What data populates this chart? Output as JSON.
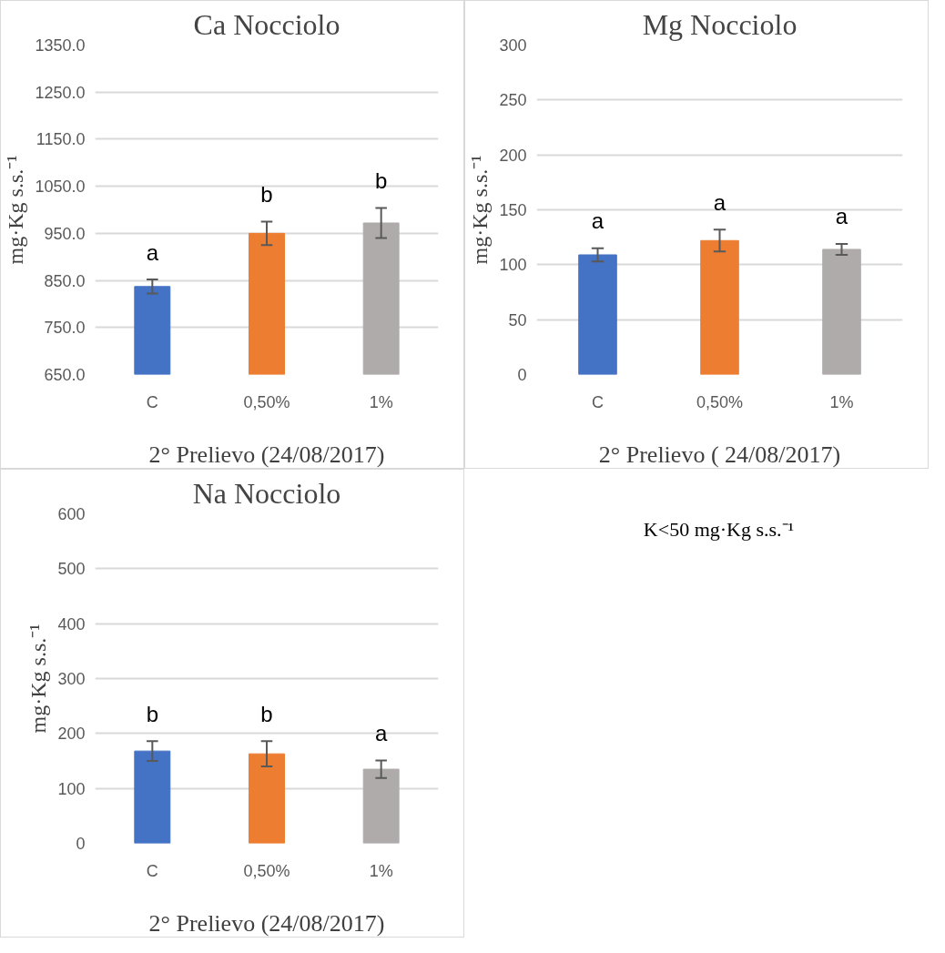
{
  "chart_data": [
    {
      "type": "bar",
      "title": "Ca Nocciolo",
      "xlabel": "2° Prelievo (24/08/2017)",
      "ylabel": "mg·Kg s.s.⁻¹",
      "categories": [
        "C",
        "0,50%",
        "1%"
      ],
      "values": [
        837,
        950,
        972
      ],
      "errors": [
        15,
        25,
        32
      ],
      "colors": [
        "#4472c4",
        "#ed7d31",
        "#afabab"
      ],
      "ylim": [
        650,
        1350
      ],
      "yticks": [
        {
          "value": 650,
          "label": "650.0"
        },
        {
          "value": 750,
          "label": "750.0"
        },
        {
          "value": 850,
          "label": "850.0"
        },
        {
          "value": 950,
          "label": "950.0"
        },
        {
          "value": 1050,
          "label": "1050.0"
        },
        {
          "value": 1150,
          "label": "1150.0"
        },
        {
          "value": 1250,
          "label": "1250.0"
        },
        {
          "value": 1350,
          "label": "1350.0"
        }
      ],
      "grid": "y",
      "annotations": [
        "a",
        "b",
        "b"
      ]
    },
    {
      "type": "bar",
      "title": "Mg Nocciolo",
      "xlabel": "2° Prelievo ( 24/08/2017)",
      "ylabel": "mg·Kg s.s.⁻¹",
      "categories": [
        "C",
        "0,50%",
        "1%"
      ],
      "values": [
        109,
        122,
        114
      ],
      "errors": [
        6,
        10,
        5
      ],
      "colors": [
        "#4472c4",
        "#ed7d31",
        "#afabab"
      ],
      "ylim": [
        0,
        300
      ],
      "yticks": [
        0,
        50,
        100,
        150,
        200,
        250,
        300
      ],
      "grid": "y",
      "annotations": [
        "a",
        "a",
        "a"
      ]
    },
    {
      "type": "bar",
      "title": "Na Nocciolo",
      "xlabel": "2° Prelievo (24/08/2017)",
      "ylabel": "mg·Kg s.s.⁻¹",
      "categories": [
        "C",
        "0,50%",
        "1%"
      ],
      "values": [
        168,
        163,
        135
      ],
      "errors": [
        18,
        23,
        16
      ],
      "colors": [
        "#4472c4",
        "#ed7d31",
        "#afabab"
      ],
      "ylim": [
        0,
        600
      ],
      "yticks": [
        0,
        100,
        200,
        300,
        400,
        500,
        600
      ],
      "grid": "y",
      "annotations": [
        "b",
        "b",
        "a"
      ]
    },
    {
      "type": "other",
      "annotations": [
        "K<50 mg·Kg s.s.⁻¹"
      ]
    }
  ]
}
